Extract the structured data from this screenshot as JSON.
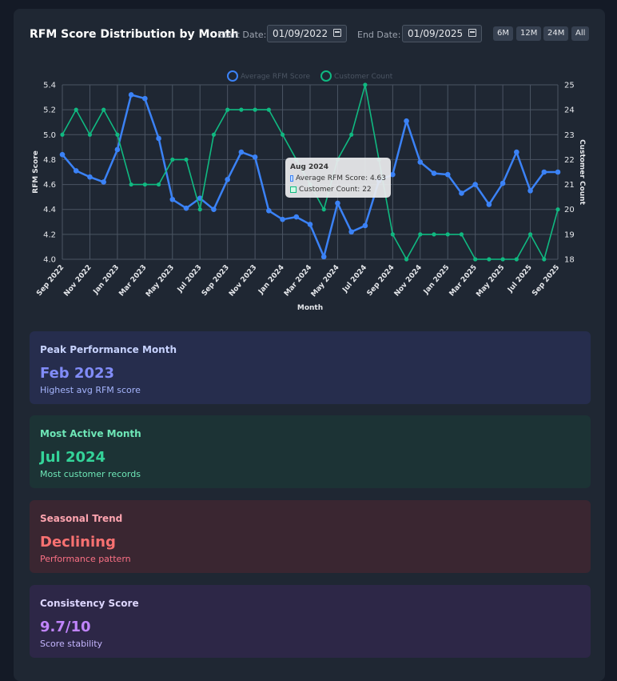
{
  "header": {
    "title": "RFM Score Distribution by Month",
    "start_label": "Start Date:",
    "start_value": "01/09/2022",
    "end_label": "End Date:",
    "end_value": "01/09/2025",
    "ranges": [
      "6M",
      "12M",
      "24M",
      "All"
    ]
  },
  "chart_data": {
    "type": "line",
    "xlabel": "Month",
    "ylabel": "RFM Score",
    "y2label": "Customer Count",
    "ylim": [
      4.0,
      5.4
    ],
    "y2lim": [
      18,
      25
    ],
    "legend_position": "top-center",
    "grid": true,
    "x": [
      "Sep 2022",
      "Oct 2022",
      "Nov 2022",
      "Dec 2022",
      "Jan 2023",
      "Feb 2023",
      "Mar 2023",
      "Apr 2023",
      "May 2023",
      "Jun 2023",
      "Jul 2023",
      "Aug 2023",
      "Sep 2023",
      "Oct 2023",
      "Nov 2023",
      "Dec 2023",
      "Jan 2024",
      "Feb 2024",
      "Mar 2024",
      "Apr 2024",
      "May 2024",
      "Jun 2024",
      "Jul 2024",
      "Aug 2024",
      "Sep 2024",
      "Oct 2024",
      "Nov 2024",
      "Dec 2024",
      "Jan 2025",
      "Feb 2025",
      "Mar 2025",
      "Apr 2025",
      "May 2025",
      "Jun 2025",
      "Jul 2025",
      "Aug 2025",
      "Sep 2025"
    ],
    "x_ticks": [
      "Sep 2022",
      "Nov 2022",
      "Jan 2023",
      "Mar 2023",
      "May 2023",
      "Jul 2023",
      "Sep 2023",
      "Nov 2023",
      "Jan 2024",
      "Mar 2024",
      "May 2024",
      "Jul 2024",
      "Sep 2024",
      "Nov 2024",
      "Jan 2025",
      "Mar 2025",
      "May 2025",
      "Jul 2025",
      "Sep 2025"
    ],
    "y_ticks": [
      "4.0",
      "4.2",
      "4.4",
      "4.6",
      "4.8",
      "5.0",
      "5.2",
      "5.4"
    ],
    "y2_ticks": [
      "18",
      "19",
      "20",
      "21",
      "22",
      "23",
      "24",
      "25"
    ],
    "series": [
      {
        "name": "Average RFM Score",
        "axis": "left",
        "color": "#3b82f6",
        "values": [
          4.84,
          4.71,
          4.66,
          4.62,
          4.88,
          5.32,
          5.29,
          4.97,
          4.48,
          4.41,
          4.49,
          4.4,
          4.64,
          4.86,
          4.82,
          4.39,
          4.32,
          4.34,
          4.28,
          4.02,
          4.45,
          4.22,
          4.27,
          4.63,
          4.68,
          5.11,
          4.78,
          4.69,
          4.68,
          4.53,
          4.6,
          4.44,
          4.61,
          4.86,
          4.55,
          4.7,
          4.7
        ]
      },
      {
        "name": "Customer Count",
        "axis": "right",
        "color": "#10b981",
        "values": [
          23,
          24,
          23,
          24,
          23,
          21,
          21,
          21,
          22,
          22,
          20,
          23,
          24,
          24,
          24,
          24,
          23,
          22,
          21,
          20,
          22,
          23,
          25,
          22,
          19,
          18,
          19,
          19,
          19,
          19,
          18,
          18,
          18,
          18,
          19,
          18,
          20
        ]
      }
    ]
  },
  "tooltip": {
    "title": "Aug 2024",
    "line1": "Average RFM Score: 4.63",
    "line2": "Customer Count: 22"
  },
  "cards": [
    {
      "title": "Peak Performance Month",
      "value": "Feb 2023",
      "subtitle": "Highest avg RFM score",
      "bg": "#262d4d",
      "title_color": "#c7d2fe",
      "value_color": "#818cf8",
      "sub_color": "#a5b4fc"
    },
    {
      "title": "Most Active Month",
      "value": "Jul 2024",
      "subtitle": "Most customer records",
      "bg": "#1c3335",
      "title_color": "#6ee7b7",
      "value_color": "#34d399",
      "sub_color": "#6ee7b7"
    },
    {
      "title": "Seasonal Trend",
      "value": "Declining",
      "subtitle": "Performance pattern",
      "bg": "#3a2631",
      "title_color": "#fda4af",
      "value_color": "#f87171",
      "sub_color": "#fb7185"
    },
    {
      "title": "Consistency Score",
      "value": "9.7/10",
      "subtitle": "Score stability",
      "bg": "#2d2747",
      "title_color": "#ddd6fe",
      "value_color": "#c084fc",
      "sub_color": "#c4b5fd"
    }
  ]
}
